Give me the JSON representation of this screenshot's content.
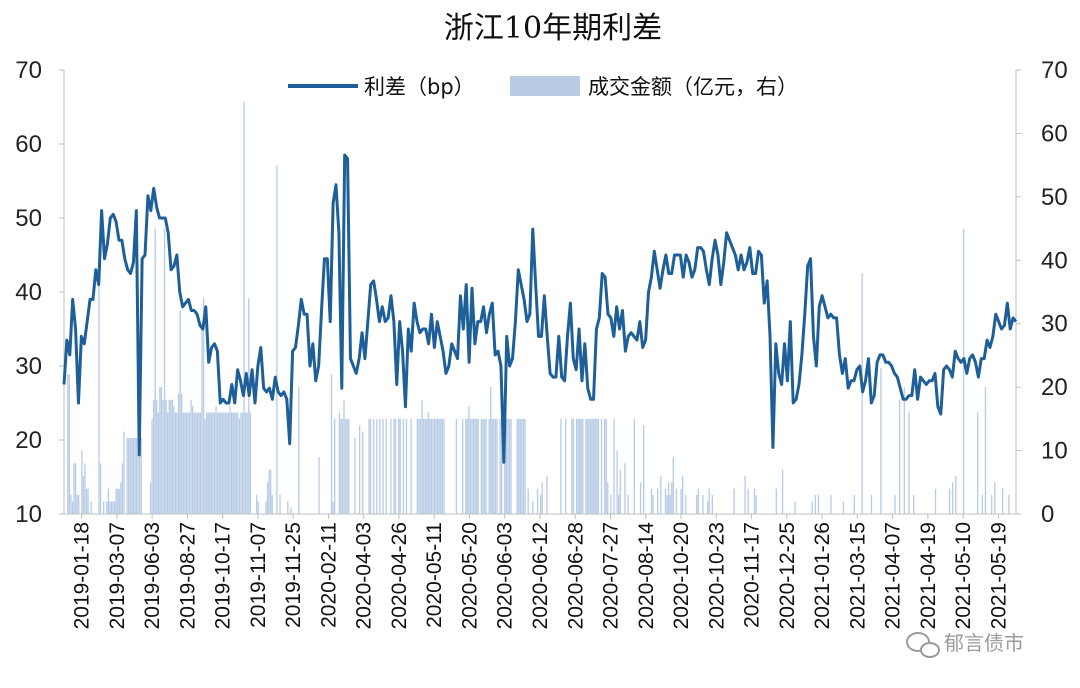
{
  "chart_data": {
    "type": "line+bar",
    "title": "浙江10年期利差",
    "legend": [
      {
        "name": "利差（bp）",
        "kind": "line",
        "color": "#1f5f99"
      },
      {
        "name": "成交金额（亿元，右）",
        "kind": "bar",
        "color": "#b8cce6"
      }
    ],
    "legend_placement": "top-center",
    "y_left": {
      "min": 10,
      "max": 70,
      "ticks": [
        "10",
        "20",
        "30",
        "40",
        "50",
        "60",
        "70"
      ]
    },
    "y_right": {
      "min": 0,
      "max": 70,
      "ticks": [
        "0",
        "10",
        "20",
        "30",
        "40",
        "50",
        "60",
        "70"
      ]
    },
    "x_tick_labels": [
      "2019-01-18",
      "2019-03-07",
      "2019-06-03",
      "2019-08-27",
      "2019-10-17",
      "2019-11-07",
      "2019-11-25",
      "2020-02-11",
      "2020-04-03",
      "2020-04-26",
      "2020-05-11",
      "2020-05-20",
      "2020-06-03",
      "2020-06-12",
      "2020-06-28",
      "2020-07-27",
      "2020-08-14",
      "2020-10-20",
      "2020-10-23",
      "2020-11-17",
      "2020-12-25",
      "2021-01-26",
      "2021-03-15",
      "2021-04-07",
      "2021-04-19",
      "2021-05-10",
      "2021-05-19"
    ],
    "spread_bp": [
      27.5,
      33.5,
      31.5,
      39,
      35,
      25,
      34,
      33,
      36,
      39,
      39,
      43,
      41,
      51,
      44.5,
      46.5,
      50,
      50.5,
      49.5,
      47,
      47,
      44.5,
      43,
      42.5,
      44,
      51,
      18,
      44.5,
      45,
      53,
      51,
      54,
      51.5,
      50,
      50,
      50,
      48,
      43,
      43.5,
      45,
      40,
      38,
      38.5,
      39,
      37.5,
      37.5,
      37,
      35.5,
      35,
      38,
      30.5,
      32.5,
      33,
      32,
      25,
      25.5,
      25,
      25,
      27.5,
      25,
      29.5,
      28,
      26,
      29,
      26,
      29.5,
      25,
      30,
      32.5,
      27,
      26.5,
      27,
      25.5,
      28.5,
      26.5,
      26,
      26.5,
      25.5,
      19.5,
      32,
      32.5,
      35.5,
      39,
      37,
      37,
      30,
      33,
      28,
      30,
      37.5,
      44.5,
      44.5,
      36,
      52,
      54.5,
      48,
      27,
      58.5,
      58,
      31,
      30,
      29,
      31,
      34.5,
      31,
      36,
      41,
      41.5,
      39,
      36,
      38,
      36,
      36.5,
      39.5,
      36,
      27.5,
      36,
      32,
      24.5,
      35,
      32,
      38.5,
      36,
      34.5,
      35,
      35,
      33,
      37,
      32.5,
      36,
      34,
      32,
      29,
      30,
      33,
      32,
      31,
      39.5,
      35,
      41,
      30.5,
      40.5,
      33,
      36,
      36,
      38,
      34.5,
      37,
      38.5,
      31.5,
      32,
      30,
      17,
      34,
      30,
      31,
      36,
      43,
      41,
      39,
      36,
      37,
      48.5,
      41,
      34,
      34,
      39.5,
      34,
      29,
      28.5,
      28.5,
      34,
      28.5,
      28,
      34,
      38.5,
      31,
      29.5,
      35,
      28,
      33,
      27,
      25.5,
      25.5,
      35,
      36.5,
      42.5,
      42,
      37,
      36.5,
      34,
      38,
      35,
      37.5,
      32,
      34,
      34.5,
      34,
      33.5,
      36,
      32.5,
      33.5,
      40,
      42,
      45.5,
      43,
      40.5,
      43,
      45,
      42.5,
      42.5,
      45,
      45,
      45,
      42,
      45,
      44,
      42,
      43,
      46,
      46,
      45.5,
      43,
      41,
      44.5,
      47,
      45,
      41,
      44,
      48,
      47,
      46,
      45,
      43,
      45,
      43,
      44,
      46,
      42.5,
      42.5,
      45.5,
      45,
      38.5,
      41.5,
      34,
      19,
      33,
      29,
      27.5,
      33,
      28,
      36,
      25,
      25.5,
      27.5,
      31.5,
      37,
      43.5,
      44.5,
      34,
      30,
      38,
      39.5,
      38,
      36.5,
      37,
      36.5,
      36.5,
      31.5,
      29,
      31,
      27,
      28,
      28,
      29.5,
      30,
      26.5,
      28,
      31,
      25,
      26,
      30.5,
      31.5,
      31.5,
      30.5,
      30.5,
      30,
      29,
      28.5,
      27,
      25.5,
      25.5,
      26,
      26,
      29.5,
      25.5,
      28.5,
      28,
      27.5,
      28,
      28,
      29,
      24.5,
      23.5,
      29.5,
      30,
      29.5,
      28.5,
      32,
      31,
      30.5,
      31,
      29,
      31,
      31.5,
      30.5,
      28.5,
      31,
      31,
      33.5,
      32.5,
      34,
      37,
      36,
      35,
      35.5,
      38.5,
      35,
      36.5,
      36
    ],
    "volume_bn": [
      0,
      0,
      22,
      22,
      3,
      2,
      8,
      8,
      3,
      3,
      0,
      10,
      6,
      8,
      4,
      4,
      0,
      2,
      0,
      0,
      0,
      0,
      42,
      8,
      0,
      2,
      0,
      2,
      4,
      2,
      2,
      2,
      2,
      4,
      4,
      4,
      5,
      8,
      13,
      0,
      12,
      12,
      12,
      12,
      12,
      12,
      12,
      12,
      12,
      12,
      0,
      0,
      0,
      0,
      0,
      5,
      15,
      18,
      45,
      18,
      16,
      20,
      20,
      18,
      45,
      18,
      16,
      18,
      18,
      18,
      17,
      16,
      16,
      19,
      32,
      19,
      16,
      16,
      16,
      16,
      16,
      18,
      17,
      16,
      16,
      16,
      16,
      16,
      30,
      34,
      15,
      16,
      16,
      16,
      16,
      16,
      16,
      17,
      16,
      16,
      16,
      16,
      16,
      16,
      16,
      16,
      17,
      16,
      16,
      16,
      16,
      16,
      15,
      16,
      16,
      65,
      16,
      16,
      34,
      16,
      0,
      0,
      0,
      3,
      2,
      0,
      0,
      0,
      0,
      2,
      5,
      7,
      7,
      3,
      0,
      0,
      55,
      0,
      3,
      0,
      0,
      0,
      0,
      2,
      0,
      1,
      0,
      0,
      0,
      0,
      20,
      0,
      0,
      0,
      0,
      0,
      0,
      0,
      0,
      0,
      0,
      0,
      0,
      9,
      0,
      0,
      0,
      0,
      0,
      0,
      0,
      22,
      2,
      15,
      0,
      0,
      16,
      15,
      15,
      18,
      15,
      15,
      15,
      0,
      0,
      0,
      12,
      0,
      0,
      14,
      0,
      13,
      0,
      0,
      0,
      15,
      15,
      0,
      15,
      0,
      15,
      0,
      15,
      0,
      15,
      0,
      15,
      0,
      0,
      15,
      0,
      15,
      15,
      0,
      15,
      15,
      0,
      15,
      0,
      15,
      0,
      0,
      15,
      0,
      0,
      0,
      15,
      15,
      15,
      18,
      15,
      15,
      15,
      16,
      15,
      15,
      15,
      15,
      15,
      15,
      15,
      15,
      15,
      15,
      0,
      0,
      0,
      0,
      0,
      0,
      0,
      15,
      0,
      0,
      0,
      15,
      0,
      15,
      15,
      17,
      15,
      15,
      15,
      15,
      15,
      15,
      0,
      15,
      15,
      15,
      15,
      0,
      15,
      20,
      15,
      15,
      15,
      15,
      0,
      15,
      15,
      0,
      15,
      15,
      15,
      15,
      15,
      0,
      0,
      0,
      15,
      15,
      15,
      15,
      15,
      15,
      0,
      4,
      0,
      0,
      2,
      0,
      0,
      4,
      0,
      3,
      5,
      0,
      0,
      6,
      0,
      0,
      0,
      0,
      0,
      0,
      0,
      0,
      15,
      0,
      0,
      15,
      0,
      0,
      0,
      15,
      15,
      0,
      15,
      15,
      15,
      15,
      15,
      0,
      15,
      15,
      15,
      15,
      15,
      15,
      15,
      15,
      15,
      0,
      15,
      0,
      15,
      15,
      5,
      0,
      3,
      0,
      15,
      0,
      10,
      3,
      7,
      0,
      0,
      8,
      0,
      3,
      0,
      0,
      0,
      15,
      0,
      0,
      0,
      5,
      0,
      14,
      0,
      0,
      0,
      0,
      4,
      3,
      0,
      0,
      4,
      0,
      6,
      0,
      0,
      4,
      3,
      5,
      3,
      5,
      9,
      0,
      4,
      0,
      0,
      4,
      6,
      0,
      3,
      0,
      0,
      0,
      0,
      0,
      0,
      3,
      4,
      0,
      0,
      3,
      0,
      0,
      2,
      4,
      0,
      3,
      0,
      0,
      0,
      0,
      0,
      0,
      0,
      0,
      0,
      0,
      0,
      0,
      0,
      4,
      0,
      0,
      0,
      0,
      0,
      0,
      6,
      0,
      4,
      0,
      0,
      0,
      4,
      3,
      0,
      0,
      0,
      0,
      0,
      0,
      0,
      0,
      0,
      0,
      0,
      0,
      4,
      0,
      0,
      0,
      7,
      0,
      0,
      0,
      0,
      0,
      0,
      0,
      2,
      0,
      0,
      0,
      0,
      0,
      0,
      0,
      0,
      0,
      0,
      2,
      0,
      3,
      0,
      3,
      0,
      0,
      0,
      0,
      0,
      0,
      0,
      3,
      0,
      0,
      0,
      0,
      0,
      0,
      0,
      2,
      0,
      0,
      0,
      0,
      0,
      0,
      3,
      0,
      0,
      0,
      0,
      38,
      0,
      0,
      0,
      0,
      0,
      3,
      0,
      0,
      0,
      0,
      0,
      23,
      0,
      0,
      0,
      0,
      0,
      0,
      0,
      0,
      3,
      0,
      0,
      18,
      0,
      0,
      20,
      0,
      0,
      16,
      0,
      0,
      3,
      0,
      0,
      0,
      0,
      0,
      0,
      0,
      0,
      0,
      0,
      0,
      0,
      0,
      4,
      0,
      0,
      0,
      0,
      0,
      0,
      0,
      0,
      4,
      0,
      5,
      0,
      6,
      0,
      0,
      0,
      0,
      45,
      0,
      0,
      0,
      0,
      0,
      0,
      0,
      0,
      16,
      0,
      0,
      3,
      0,
      20,
      0,
      0,
      0,
      3,
      0,
      5,
      0,
      0,
      0,
      0,
      4,
      0,
      0,
      0,
      3,
      0,
      0,
      0,
      0
    ]
  },
  "watermark": {
    "text": "郁言债市",
    "icon": "wechat-icon"
  }
}
